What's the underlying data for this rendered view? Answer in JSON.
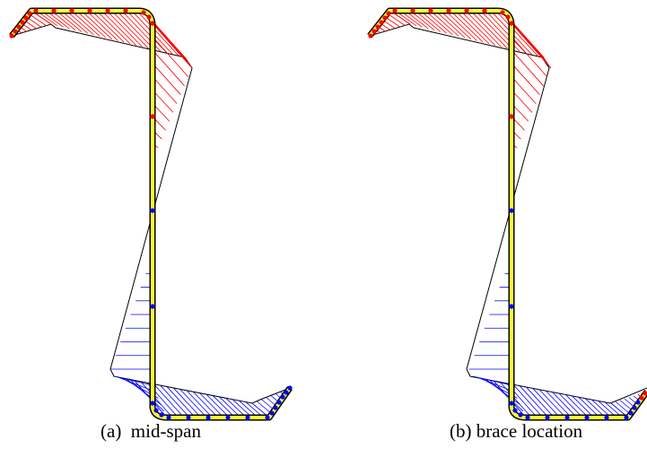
{
  "captions": {
    "a": "(a)  mid-span",
    "b": "(b) brace location"
  },
  "colors": {
    "section_fill": "#ffff33",
    "section_edge": "#000000",
    "deformed_outline": "#000000",
    "tension_side": "#ff0000",
    "compression_side": "#0000ff",
    "background": "#ffffff"
  },
  "panels": [
    {
      "id": "mid-span",
      "node_colors_top": "red",
      "node_colors_bottom": "blue"
    },
    {
      "id": "brace-location",
      "node_colors_top": "red",
      "node_colors_bottom": "blue"
    }
  ]
}
